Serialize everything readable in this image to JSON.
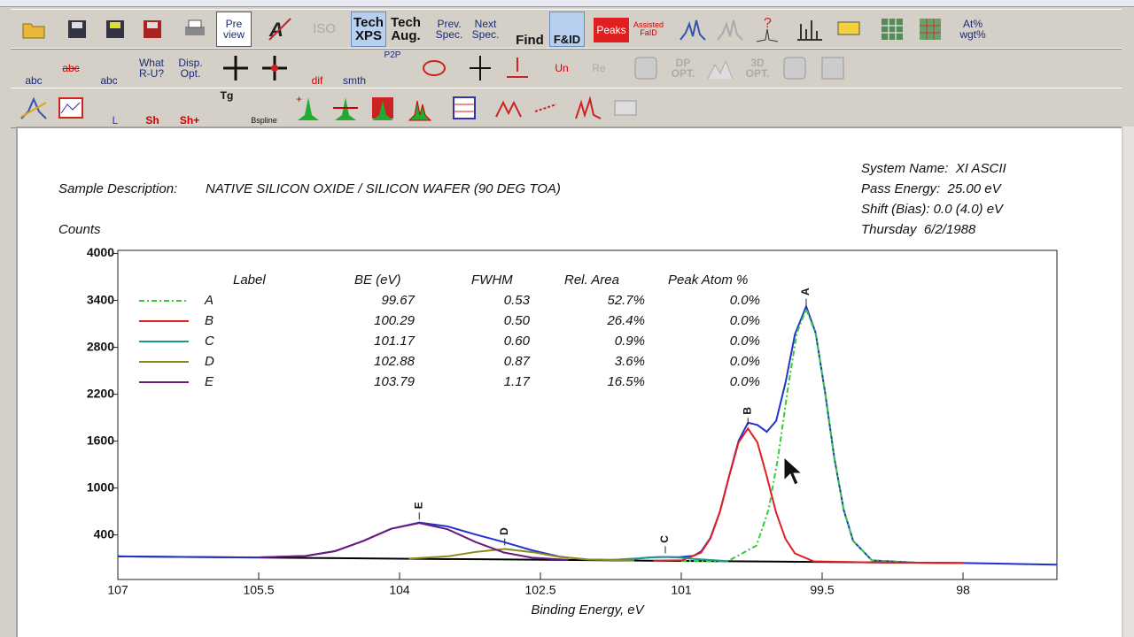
{
  "toolbar": [
    [
      "Pre\nview",
      "ISO",
      "Tech\nXPS",
      "Tech\nAug.",
      "Prev.\nSpec.",
      "Next\nSpec.",
      "Find",
      "F&ID",
      "Peaks",
      "Assisted\nFaID",
      "At%\nwgt%"
    ],
    [
      "abc",
      "abc",
      "abc",
      "What\nR-U?",
      "Disp.\nOpt.",
      "dif",
      "smth",
      "P2P",
      "Un",
      "Re",
      "DP\nOPT.",
      "3D\nOPT."
    ],
    [
      "L",
      "Sh",
      "Sh+",
      "Tg",
      "Bspline"
    ]
  ],
  "header": {
    "sample_label": "Sample Description:",
    "sample": "NATIVE SILICON OXIDE / SILICON WAFER (90 DEG TOA)",
    "info": [
      "System Name:  XI ASCII",
      "Pass Energy:  25.00 eV",
      "Shift (Bias): 0.0 (4.0) eV",
      "Thursday  6/2/1988"
    ]
  },
  "chart_data": {
    "type": "line",
    "y_label": "Counts",
    "x_label": "Binding Energy, eV",
    "xlim": [
      107,
      97
    ],
    "xticks": [
      107,
      105.5,
      104,
      102.5,
      101,
      99.5,
      98
    ],
    "ylim": [
      -170,
      4040
    ],
    "yticks": [
      400,
      1000,
      1600,
      2200,
      2800,
      3400,
      4000
    ],
    "peak_table": {
      "headers": [
        "Label",
        "BE (eV)",
        "FWHM",
        "Rel. Area",
        "Peak Atom %"
      ],
      "rows": [
        [
          "99.67",
          "0.53",
          "52.7%",
          "0.0%"
        ],
        [
          "100.29",
          "0.50",
          "26.4%",
          "0.0%"
        ],
        [
          "101.17",
          "0.60",
          "0.9%",
          "0.0%"
        ],
        [
          "102.88",
          "0.87",
          "3.6%",
          "0.0%"
        ],
        [
          "103.79",
          "1.17",
          "16.5%",
          "0.0%"
        ]
      ]
    },
    "series": [
      {
        "name": "A",
        "color": "#33cc33",
        "dashed": true,
        "x": [
          101.0,
          100.5,
          100.2,
          100.07,
          99.97,
          99.87,
          99.77,
          99.67,
          99.57,
          99.47,
          99.37,
          99.27,
          99.17,
          98.97,
          98.5,
          98.0
        ],
        "values": [
          68,
          67,
          263,
          725,
          1387,
          2235,
          2983,
          3286,
          2981,
          2231,
          1381,
          717,
          325,
          75,
          45,
          40
        ]
      },
      {
        "name": "B",
        "color": "#e02020",
        "dashed": false,
        "x": [
          101.3,
          100.99,
          100.79,
          100.69,
          100.59,
          100.49,
          100.39,
          100.29,
          100.19,
          100.09,
          99.99,
          99.89,
          99.79,
          99.59,
          99.0,
          98.0
        ],
        "values": [
          71,
          76,
          173,
          355,
          691,
          1155,
          1585,
          1762,
          1583,
          1151,
          685,
          347,
          163,
          62,
          49,
          40
        ]
      },
      {
        "name": "C",
        "color": "#1a9a8a",
        "dashed": false,
        "x": [
          101.8,
          101.47,
          101.32,
          101.17,
          101.02,
          100.87,
          100.5
        ],
        "values": [
          76,
          98,
          113,
          119,
          110,
          92,
          64
        ]
      },
      {
        "name": "D",
        "color": "#8b8b1a",
        "dashed": false,
        "x": [
          103.9,
          103.48,
          103.18,
          102.88,
          102.58,
          102.28,
          101.98,
          101.5
        ],
        "values": [
          97,
          127,
          184,
          220,
          179,
          116,
          85,
          73
        ]
      },
      {
        "name": "E",
        "color": "#6a1a7a",
        "dashed": false,
        "x": [
          105.5,
          105.0,
          104.69,
          104.39,
          104.09,
          103.79,
          103.49,
          103.19,
          102.89,
          102.59,
          102.2
        ],
        "values": [
          113,
          131,
          192,
          321,
          479,
          552,
          473,
          309,
          175,
          108,
          80
        ]
      }
    ],
    "envelope": {
      "color": "#2233cc",
      "x": [
        107,
        106.5,
        106,
        105.5,
        105,
        104.69,
        104.39,
        104.09,
        103.79,
        103.49,
        103.19,
        102.89,
        102.59,
        102.29,
        101.99,
        101.7,
        101.47,
        101.32,
        101.17,
        101.02,
        100.87,
        100.79,
        100.69,
        100.59,
        100.49,
        100.39,
        100.29,
        100.19,
        100.09,
        99.99,
        99.89,
        99.79,
        99.67,
        99.57,
        99.47,
        99.37,
        99.27,
        99.17,
        98.97,
        98.5,
        98.0,
        97.5,
        97.0
      ],
      "values": [
        125,
        120,
        115,
        113,
        131,
        192,
        321,
        479,
        559,
        509,
        405,
        309,
        204,
        121,
        85,
        80,
        98,
        113,
        119,
        115,
        133,
        188,
        363,
        694,
        1158,
        1605,
        1835,
        1807,
        1719,
        1860,
        2350,
        2967,
        3324,
        2986,
        2231,
        1381,
        717,
        325,
        75,
        45,
        40,
        30,
        20
      ]
    },
    "background": {
      "color": "#000000",
      "x": [
        107,
        106,
        105,
        104,
        103,
        102,
        101,
        100,
        99,
        98
      ],
      "values": [
        125,
        115,
        106,
        96,
        87,
        78,
        68,
        59,
        49,
        40
      ]
    }
  }
}
